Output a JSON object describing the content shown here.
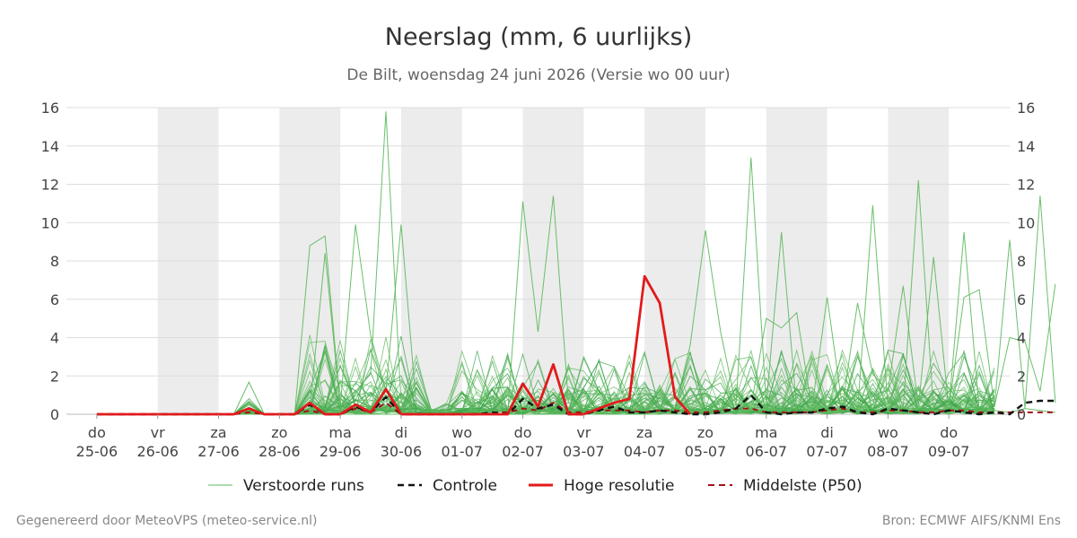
{
  "chart_data": {
    "type": "line",
    "title": "Neerslag (mm, 6 uurlijks)",
    "subtitle": "De Bilt, woensdag 24 juni 2026 (Versie wo 00 uur)",
    "ylim": [
      0,
      16
    ],
    "yticks": [
      0,
      2,
      4,
      6,
      8,
      10,
      12,
      14,
      16
    ],
    "grid": true,
    "x_start_label": "24-06 00:00",
    "days": [
      {
        "day": "do",
        "date": "25-06",
        "weekend": false
      },
      {
        "day": "vr",
        "date": "26-06",
        "weekend": true
      },
      {
        "day": "za",
        "date": "27-06",
        "weekend": false
      },
      {
        "day": "zo",
        "date": "28-06",
        "weekend": true
      },
      {
        "day": "ma",
        "date": "29-06",
        "weekend": false
      },
      {
        "day": "di",
        "date": "30-06",
        "weekend": true
      },
      {
        "day": "wo",
        "date": "01-07",
        "weekend": false
      },
      {
        "day": "do",
        "date": "02-07",
        "weekend": true
      },
      {
        "day": "vr",
        "date": "03-07",
        "weekend": false
      },
      {
        "day": "za",
        "date": "04-07",
        "weekend": true
      },
      {
        "day": "zo",
        "date": "05-07",
        "weekend": false
      },
      {
        "day": "ma",
        "date": "06-07",
        "weekend": true
      },
      {
        "day": "di",
        "date": "07-07",
        "weekend": false
      },
      {
        "day": "wo",
        "date": "08-07",
        "weekend": true
      },
      {
        "day": "do",
        "date": "09-07",
        "weekend": false
      }
    ],
    "legend": {
      "placement": "bottom",
      "items": [
        {
          "label": "Verstoorde runs",
          "color": "#5cb85c",
          "style": "thin-solid"
        },
        {
          "label": "Controle",
          "color": "#111111",
          "style": "dashed"
        },
        {
          "label": "Hoge resolutie",
          "color": "#e31a1c",
          "style": "solid"
        },
        {
          "label": "Middelste (P50)",
          "color": "#a50f15",
          "style": "dashed"
        }
      ]
    },
    "series": [
      {
        "name": "Hoge resolutie",
        "color": "#e31a1c",
        "values": [
          0,
          0,
          0,
          0,
          0,
          0,
          0,
          0,
          0,
          0,
          0.3,
          0,
          0,
          0,
          0.6,
          0,
          0,
          0.5,
          0.1,
          1.3,
          0,
          0,
          0,
          0,
          0,
          0,
          0,
          0,
          1.6,
          0.4,
          2.6,
          0,
          0,
          0.3,
          0.6,
          0.8,
          7.2,
          5.8,
          0.9,
          0
        ]
      },
      {
        "name": "Controle",
        "color": "#111111",
        "values": [
          0,
          0,
          0,
          0,
          0,
          0,
          0,
          0,
          0,
          0,
          0.3,
          0,
          0,
          0,
          0.5,
          0,
          0,
          0.4,
          0.1,
          0.9,
          0,
          0,
          0,
          0,
          0,
          0,
          0.1,
          0,
          0.8,
          0.3,
          0.5,
          0,
          0,
          0.2,
          0.4,
          0.1,
          0.1,
          0.2,
          0.1,
          0,
          0,
          0.1,
          0.3,
          1.0,
          0.1,
          0,
          0.1,
          0.1,
          0.3,
          0.4,
          0.1,
          0,
          0.3,
          0.2,
          0.1,
          0,
          0.2,
          0.1,
          0,
          0.1,
          0,
          0.6,
          0.7,
          0.7
        ]
      },
      {
        "name": "Middelste (P50)",
        "color": "#a50f15",
        "values": [
          0,
          0,
          0,
          0,
          0,
          0,
          0,
          0,
          0,
          0,
          0.1,
          0,
          0,
          0,
          0.2,
          0,
          0,
          0.3,
          0.1,
          0.6,
          0,
          0,
          0,
          0,
          0,
          0,
          0.1,
          0.1,
          0.3,
          0.2,
          0.6,
          0.1,
          0.1,
          0.2,
          0.2,
          0.2,
          0.1,
          0.2,
          0.2,
          0.1,
          0.1,
          0.2,
          0.3,
          0.3,
          0.1,
          0.1,
          0.1,
          0.1,
          0.2,
          0.3,
          0.1,
          0.1,
          0.2,
          0.2,
          0.1,
          0.1,
          0.2,
          0.2,
          0.1,
          0.1,
          0.1,
          0.1,
          0.1,
          0.1
        ]
      }
    ],
    "ensemble_highlights": [
      [
        0,
        0,
        0,
        0,
        0,
        0,
        0,
        0,
        0,
        0,
        0.2,
        0,
        0,
        0,
        8.8,
        9.3,
        0.5,
        1.2,
        2.1,
        15.8,
        0.6,
        0,
        0,
        0,
        0,
        0,
        0,
        0,
        0.3,
        0.5,
        0.4,
        0.2,
        0.1,
        0.5,
        0.8,
        0.3,
        0.2,
        0.4,
        0.2,
        0.1,
        0.2,
        0.3,
        0.1,
        0.2,
        0.5,
        0.4,
        0.3,
        0.2,
        0.1,
        0.2,
        0.4,
        0.3,
        0.2,
        0.1,
        0.3,
        0.2,
        0.1,
        0.3,
        0.4,
        0.2,
        0.1,
        0.3,
        0.2,
        0.1
      ],
      [
        0,
        0,
        0,
        0,
        0,
        0,
        0,
        0,
        0,
        0,
        0,
        0,
        0,
        0,
        0.3,
        8.4,
        0.4,
        9.9,
        4.1,
        1.2,
        9.9,
        0.4,
        0,
        0,
        0,
        0,
        0,
        0,
        11.1,
        4.3,
        11.4,
        0.6,
        0.4,
        0.3,
        0.5,
        0.2,
        0.1,
        0.3,
        0.2,
        0.4,
        0.2,
        0.1,
        0.3,
        13.4,
        0.5,
        9.5,
        0.3,
        0.2,
        0.4,
        0.3,
        0.2,
        10.9,
        0.4,
        0.3,
        12.2,
        0.2,
        0.3,
        9.5,
        0.2,
        0.4,
        9.1,
        0.3,
        11.4,
        0.6
      ],
      [
        0,
        0,
        0,
        0,
        0,
        0,
        0,
        0,
        0,
        0,
        0,
        0,
        0,
        0,
        0,
        0,
        0,
        0,
        0,
        0,
        0,
        0,
        0,
        0,
        0,
        0,
        0,
        0,
        0,
        0,
        0,
        0,
        0,
        0,
        0,
        0,
        0,
        0,
        0.3,
        3.6,
        9.6,
        4.3,
        0.5,
        0.4,
        5.0,
        4.5,
        5.3,
        0.3,
        6.1,
        0.4,
        5.8,
        2.1,
        1.2,
        6.7,
        0.4,
        8.2,
        0.3,
        6.1,
        6.5,
        0.4,
        4.0,
        3.8,
        1.2,
        6.8
      ]
    ],
    "ensemble_members": 50,
    "ensemble_seed": 7
  },
  "footer": {
    "left": "Gegenereerd door MeteoVPS (meteo-service.nl)",
    "right": "Bron: ECMWF AIFS/KNMI Ens"
  }
}
